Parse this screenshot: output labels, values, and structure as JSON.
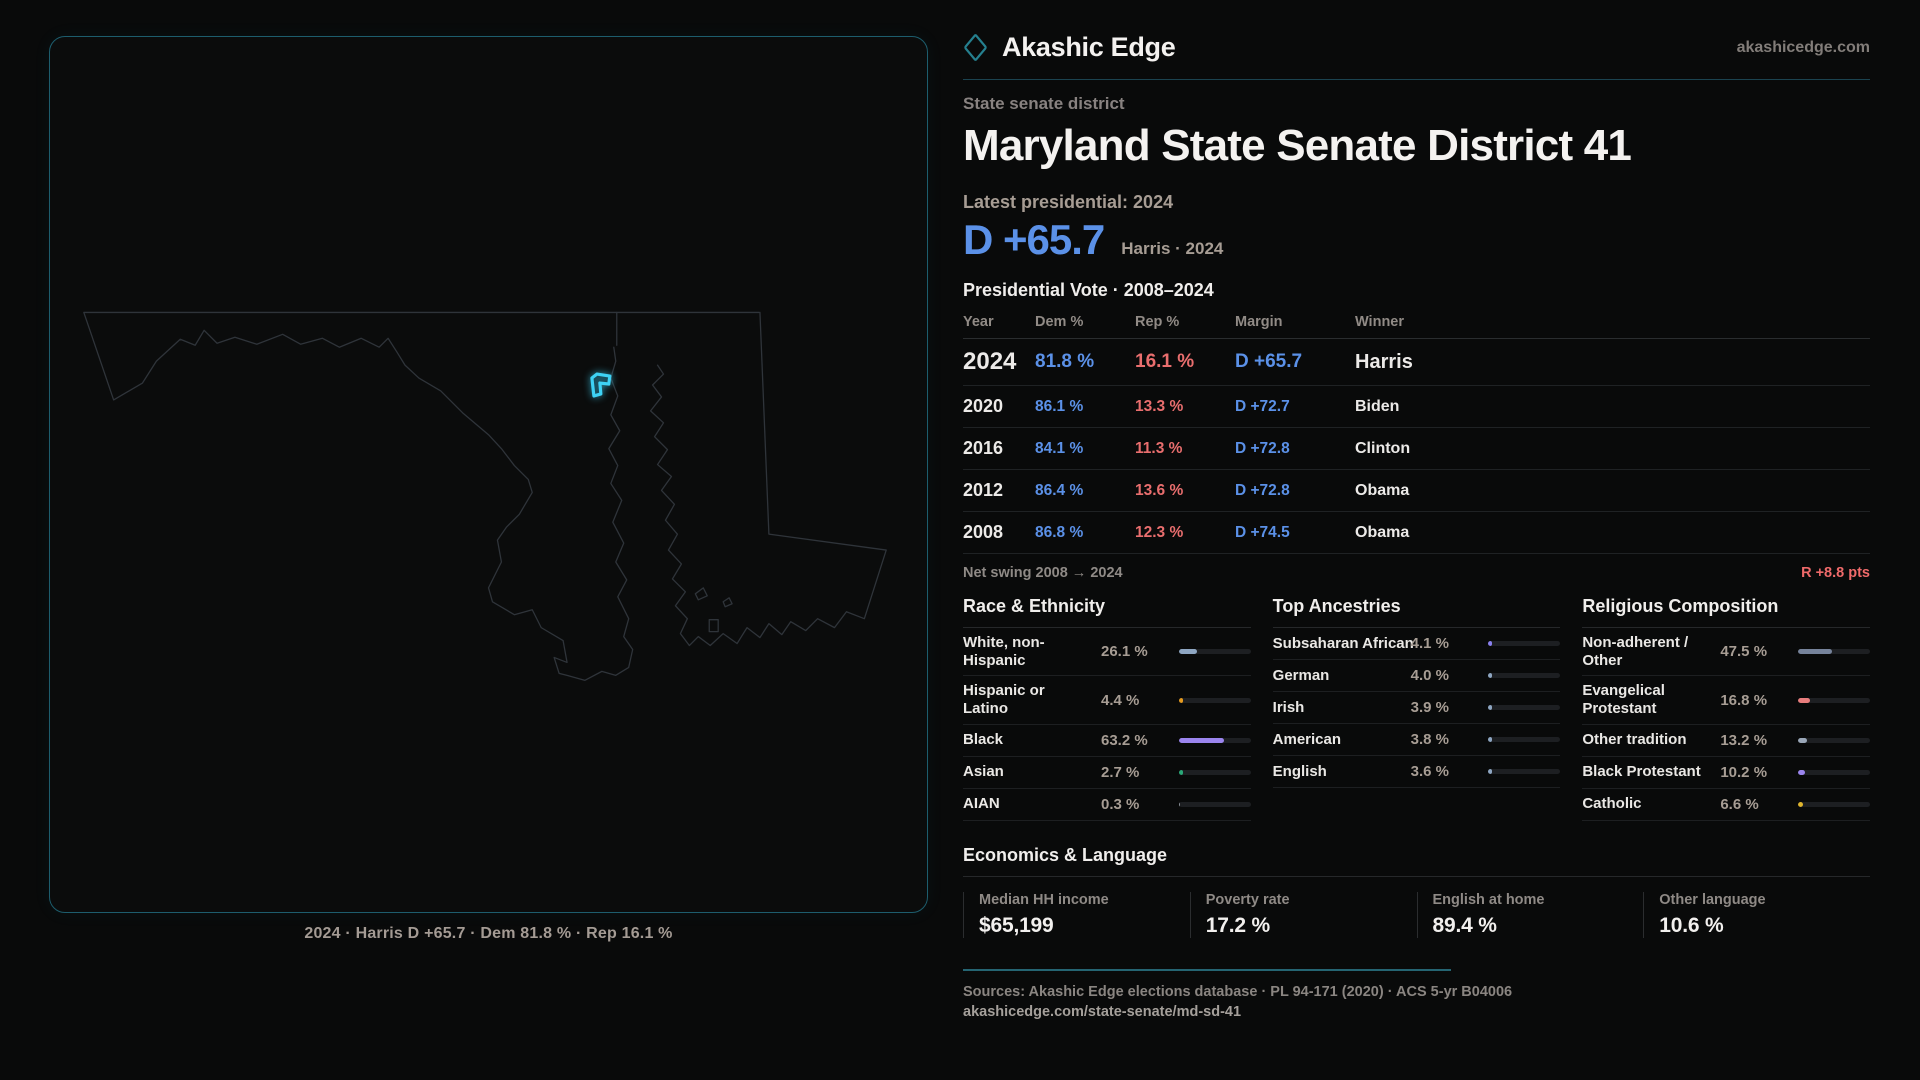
{
  "brand": {
    "name": "Akashic Edge",
    "domain": "akashicedge.com"
  },
  "page": {
    "kicker": "State senate district",
    "title": "Maryland State Senate District 41",
    "latest_label": "Latest presidential: 2024",
    "headline_margin": "D +65.7",
    "headline_note": "Harris · 2024"
  },
  "map": {
    "caption": "2024 · Harris D +65.7 · Dem 81.8 % · Rep 16.1 %"
  },
  "vote_table": {
    "title": "Presidential Vote · 2008–2024",
    "columns": [
      "Year",
      "Dem %",
      "Rep %",
      "Margin",
      "Winner"
    ],
    "rows": [
      {
        "year": "2024",
        "dem": "81.8 %",
        "rep": "16.1 %",
        "margin": "D +65.7",
        "winner": "Harris",
        "highlight": true
      },
      {
        "year": "2020",
        "dem": "86.1 %",
        "rep": "13.3 %",
        "margin": "D +72.7",
        "winner": "Biden",
        "highlight": false
      },
      {
        "year": "2016",
        "dem": "84.1 %",
        "rep": "11.3 %",
        "margin": "D +72.8",
        "winner": "Clinton",
        "highlight": false
      },
      {
        "year": "2012",
        "dem": "86.4 %",
        "rep": "13.6 %",
        "margin": "D +72.8",
        "winner": "Obama",
        "highlight": false
      },
      {
        "year": "2008",
        "dem": "86.8 %",
        "rep": "12.3 %",
        "margin": "D +74.5",
        "winner": "Obama",
        "highlight": false
      }
    ]
  },
  "net_swing": {
    "label": "Net swing 2008 → 2024",
    "value": "R +8.8 pts"
  },
  "demographics": [
    {
      "title": "Race & Ethnicity",
      "rows": [
        {
          "label": "White, non-Hispanic",
          "value": "26.1 %",
          "pct": 26.1,
          "color": "#8ea6c2"
        },
        {
          "label": "Hispanic or Latino",
          "value": "4.4 %",
          "pct": 4.4,
          "color": "#e59a1f"
        },
        {
          "label": "Black",
          "value": "63.2 %",
          "pct": 63.2,
          "color": "#9b85ee"
        },
        {
          "label": "Asian",
          "value": "2.7 %",
          "pct": 2.7,
          "color": "#2aa878"
        },
        {
          "label": "AIAN",
          "value": "0.3 %",
          "pct": 0.3,
          "color": "#8a8f96"
        }
      ]
    },
    {
      "title": "Top Ancestries",
      "rows": [
        {
          "label": "Subsaharan African",
          "value": "4.1 %",
          "pct": 4.1,
          "color": "#8a80ef"
        },
        {
          "label": "German",
          "value": "4.0 %",
          "pct": 4.0,
          "color": "#8ea6c2"
        },
        {
          "label": "Irish",
          "value": "3.9 %",
          "pct": 3.9,
          "color": "#8ea6c2"
        },
        {
          "label": "American",
          "value": "3.8 %",
          "pct": 3.8,
          "color": "#8ea6c2"
        },
        {
          "label": "English",
          "value": "3.6 %",
          "pct": 3.6,
          "color": "#8ea6c2"
        }
      ]
    },
    {
      "title": "Religious Composition",
      "rows": [
        {
          "label": "Non-adherent / Other",
          "value": "47.5 %",
          "pct": 47.5,
          "color": "#76839b"
        },
        {
          "label": "Evangelical Protestant",
          "value": "16.8 %",
          "pct": 16.8,
          "color": "#e87d7d"
        },
        {
          "label": "Other tradition",
          "value": "13.2 %",
          "pct": 13.2,
          "color": "#9aa7b8"
        },
        {
          "label": "Black Protestant",
          "value": "10.2 %",
          "pct": 10.2,
          "color": "#9b85ee"
        },
        {
          "label": "Catholic",
          "value": "6.6 %",
          "pct": 6.6,
          "color": "#e0b52d"
        }
      ]
    }
  ],
  "economics": {
    "title": "Economics & Language",
    "stats": [
      {
        "label": "Median HH income",
        "value": "$65,199"
      },
      {
        "label": "Poverty rate",
        "value": "17.2 %"
      },
      {
        "label": "English at home",
        "value": "89.4 %"
      },
      {
        "label": "Other language",
        "value": "10.6 %"
      }
    ]
  },
  "footer": {
    "sources": "Sources: Akashic Edge elections database · PL 94-171 (2020) · ACS 5-yr B04006",
    "permalink": "akashicedge.com/state-senate/md-sd-41"
  },
  "colors": {
    "dem": "#5b91e8",
    "rep": "#e96e6e",
    "accent": "#2fb0c4",
    "swing": "#ef6a6a"
  }
}
